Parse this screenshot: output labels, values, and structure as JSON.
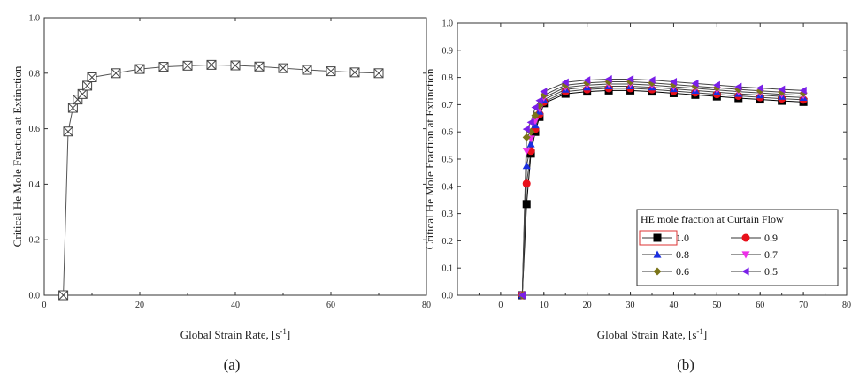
{
  "chart_data": [
    {
      "type": "line",
      "caption": "(a)",
      "xlabel": "Global Strain Rate, [s",
      "xlabel_sup": "-1",
      "xlabel_end": "]",
      "ylabel": "Critical He Mole Fraction at Extinction",
      "xlim": [
        0,
        80
      ],
      "ylim": [
        0,
        1.0
      ],
      "x_ticks": [
        "0",
        "20",
        "40",
        "60",
        "80"
      ],
      "y_ticks": [
        "0.0",
        "0.2",
        "0.4",
        "0.6",
        "0.8",
        "1.0"
      ],
      "grid": false,
      "marker": "box-x",
      "series": [
        {
          "x": [
            4,
            5,
            6,
            7,
            8,
            9,
            10,
            15,
            20,
            25,
            30,
            35,
            40,
            45,
            50,
            55,
            60,
            65,
            70
          ],
          "y": [
            0.0,
            0.59,
            0.675,
            0.705,
            0.725,
            0.755,
            0.785,
            0.8,
            0.815,
            0.823,
            0.827,
            0.83,
            0.828,
            0.824,
            0.818,
            0.812,
            0.807,
            0.803,
            0.8
          ]
        }
      ]
    },
    {
      "type": "line",
      "caption": "(b)",
      "xlabel": "Global Strain Rate, [s",
      "xlabel_sup": "-1",
      "xlabel_end": "]",
      "ylabel": "Critical He Mole Fraction at Extinction",
      "xlim": [
        -10,
        80
      ],
      "ylim": [
        0,
        1.0
      ],
      "x_ticks": [
        "0",
        "10",
        "20",
        "30",
        "40",
        "50",
        "60",
        "70",
        "80"
      ],
      "y_ticks": [
        "0.0",
        "0.1",
        "0.2",
        "0.3",
        "0.4",
        "0.5",
        "0.6",
        "0.7",
        "0.8",
        "0.9",
        "1.0"
      ],
      "grid": false,
      "legend_title": "HE mole fraction at Curtain Flow",
      "legend_position": "bottom-right",
      "x": [
        5,
        6,
        7,
        8,
        9,
        10,
        15,
        20,
        25,
        30,
        35,
        40,
        45,
        50,
        55,
        60,
        65,
        70
      ],
      "series": [
        {
          "name": "1.0",
          "color": "#000000",
          "marker": "square",
          "y": [
            0.0,
            0.335,
            0.52,
            0.6,
            0.655,
            0.705,
            0.74,
            0.748,
            0.752,
            0.752,
            0.748,
            0.742,
            0.736,
            0.73,
            0.724,
            0.719,
            0.714,
            0.71
          ]
        },
        {
          "name": "0.9",
          "color": "#e8101a",
          "marker": "circle",
          "y": [
            0.0,
            0.41,
            0.53,
            0.61,
            0.665,
            0.71,
            0.748,
            0.756,
            0.76,
            0.76,
            0.756,
            0.75,
            0.744,
            0.738,
            0.732,
            0.727,
            0.722,
            0.718
          ]
        },
        {
          "name": "0.8",
          "color": "#1a2fe0",
          "marker": "triangle-up",
          "y": [
            0.0,
            0.475,
            0.555,
            0.625,
            0.675,
            0.718,
            0.756,
            0.764,
            0.768,
            0.768,
            0.764,
            0.758,
            0.752,
            0.746,
            0.74,
            0.735,
            0.73,
            0.726
          ]
        },
        {
          "name": "0.7",
          "color": "#ee2fe8",
          "marker": "triangle-down",
          "y": [
            0.0,
            0.53,
            0.575,
            0.64,
            0.685,
            0.726,
            0.764,
            0.772,
            0.776,
            0.776,
            0.772,
            0.766,
            0.76,
            0.754,
            0.748,
            0.743,
            0.738,
            0.734
          ]
        },
        {
          "name": "0.6",
          "color": "#7a7418",
          "marker": "diamond",
          "y": [
            0.0,
            0.58,
            0.6,
            0.66,
            0.697,
            0.735,
            0.772,
            0.78,
            0.784,
            0.784,
            0.78,
            0.774,
            0.768,
            0.762,
            0.756,
            0.751,
            0.746,
            0.742
          ]
        },
        {
          "name": "0.5",
          "color": "#7a1fe8",
          "marker": "triangle-left",
          "y": [
            0.0,
            0.61,
            0.635,
            0.69,
            0.715,
            0.748,
            0.782,
            0.79,
            0.794,
            0.794,
            0.79,
            0.784,
            0.778,
            0.772,
            0.766,
            0.761,
            0.756,
            0.752
          ]
        }
      ]
    }
  ]
}
